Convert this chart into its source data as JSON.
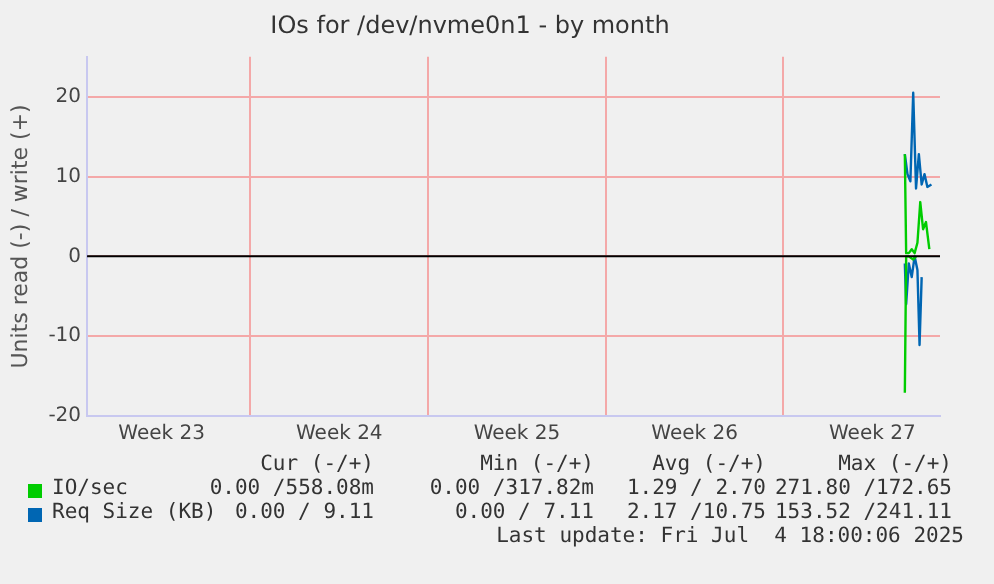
{
  "chart_data": {
    "type": "line",
    "title": "IOs for /dev/nvme0n1 - by month",
    "ylabel": "Units read (-) / write (+)",
    "xlim": [
      "2025-06-02T13:30",
      "2025-07-06T04:00"
    ],
    "xticks": [
      {
        "value": "2025-06-05T12:00",
        "label": "Week 23"
      },
      {
        "value": "2025-06-09",
        "label": null
      },
      {
        "value": "2025-06-12T12:00",
        "label": "Week 24"
      },
      {
        "value": "2025-06-16",
        "label": null
      },
      {
        "value": "2025-06-19T12:00",
        "label": "Week 25"
      },
      {
        "value": "2025-06-23",
        "label": null
      },
      {
        "value": "2025-06-26T12:00",
        "label": "Week 26"
      },
      {
        "value": "2025-06-30",
        "label": null
      },
      {
        "value": "2025-07-03T12:00",
        "label": "Week 27"
      }
    ],
    "ylim": [
      -20,
      25
    ],
    "yticks": [
      -20,
      -10,
      0,
      10,
      20
    ],
    "grid": true,
    "legend": "bottom",
    "marker": "none",
    "line_style": "solid",
    "ref_lines": [
      {
        "axis": "y",
        "value": 0,
        "color": "#000000"
      }
    ],
    "series": [
      {
        "name": "IO/sec",
        "color": "#00cc00",
        "x": [
          "2025-07-04T18:45",
          "2025-07-04T20:00",
          "2025-07-04T22:30",
          "2025-07-05T01:15",
          "2025-07-05T04:00",
          "2025-07-05T06:40",
          "2025-07-05T09:20",
          "2025-07-05T12:00",
          "2025-07-05T14:45",
          "2025-07-05T17:55"
        ],
        "values": [
          12.8,
          0.4,
          0.4,
          0.9,
          0.4,
          1.7,
          6.8,
          3.4,
          4.3,
          0.9
        ]
      },
      {
        "color": "#00cc00",
        "x": [
          "2025-07-04T18:45",
          "2025-07-04T20:00",
          "2025-07-04T22:30",
          "2025-07-05T02:40",
          "2025-07-05T05:20"
        ],
        "values": [
          -17.1,
          0,
          0,
          -0.4,
          0
        ]
      },
      {
        "name": "Req Size (KB)",
        "color": "#0066b3",
        "x": [
          "2025-07-04T18:45",
          "2025-07-04T21:15",
          "2025-07-05T00:00",
          "2025-07-05T02:40",
          "2025-07-05T05:20",
          "2025-07-05T08:00",
          "2025-07-05T10:40",
          "2025-07-05T13:20",
          "2025-07-05T16:05",
          "2025-07-05T19:55"
        ],
        "values": [
          12.8,
          10.3,
          9.4,
          20.5,
          8.5,
          12.8,
          9,
          10.3,
          8.7,
          9
        ]
      },
      {
        "color": "#0066b3",
        "x": [
          "2025-07-04T18:45",
          "2025-07-04T20:00",
          "2025-07-04T22:30",
          "2025-07-05T01:15",
          "2025-07-05T04:00",
          "2025-07-05T06:40",
          "2025-07-05T08:40",
          "2025-07-05T10:40"
        ],
        "values": [
          -0.9,
          -6,
          -0.9,
          -2.6,
          0,
          -1.7,
          -11.1,
          -2.6
        ]
      }
    ],
    "annotations": [
      "Cur (-/+)",
      "Min (-/+)",
      "Avg (-/+)",
      "Max (-/+)",
      "0.00 /558.08m",
      "0.00 /317.82m",
      "1.29 / 2.70",
      "271.80 /172.65",
      "0.00 / 9.11",
      "0.00 / 7.11",
      "2.17 /10.75",
      "153.52 /241.11",
      "Last update: Fri Jul  4 18:00:06 2025"
    ]
  }
}
